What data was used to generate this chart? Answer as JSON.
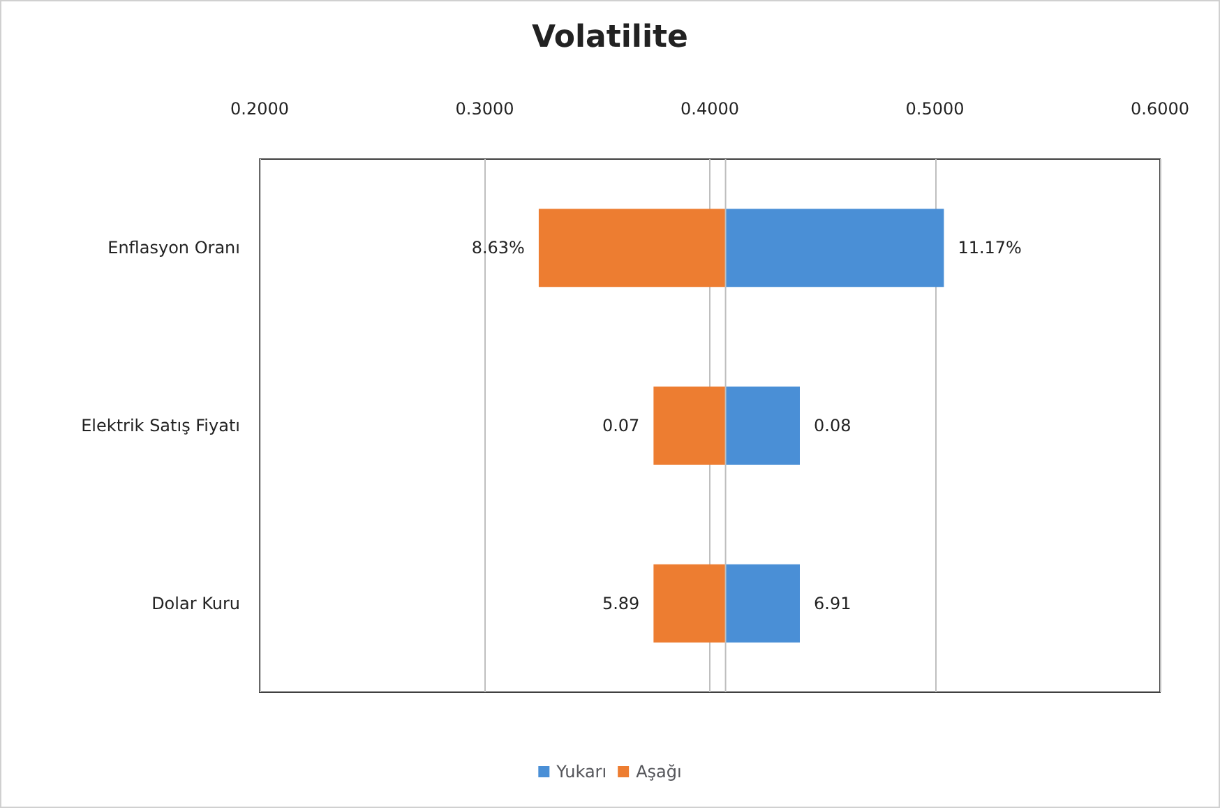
{
  "chart_data": {
    "type": "bar",
    "orientation": "horizontal",
    "title": "Volatilite",
    "categories": [
      "Enflasyon Oranı",
      "Elektrik Satış Fiyatı",
      "Dolar Kuru"
    ],
    "series": [
      {
        "name": "Yukarı",
        "color": "#4a8fd6",
        "base": [
          0.407,
          0.407,
          0.407
        ],
        "values": [
          0.097,
          0.033,
          0.033
        ]
      },
      {
        "name": "Aşağı",
        "color": "#ed7d31",
        "base": [
          0.324,
          0.375,
          0.375
        ],
        "values": [
          0.083,
          0.032,
          0.032
        ]
      }
    ],
    "annotations": [
      {
        "text": "11.17%",
        "x": 0.504,
        "y": "Enflasyon Oranı"
      },
      {
        "text": "8.63%",
        "x": 0.324,
        "y": "Enflasyon Oranı"
      },
      {
        "text": "0.08",
        "x": 0.44,
        "y": "Elektrik Satış Fiyatı"
      },
      {
        "text": "0.07",
        "x": 0.375,
        "y": "Elektrik Satış Fiyatı"
      },
      {
        "text": "6.91",
        "x": 0.44,
        "y": "Dolar Kuru"
      },
      {
        "text": "5.89",
        "x": 0.375,
        "y": "Dolar Kuru"
      }
    ],
    "xlim": [
      0.2,
      0.6
    ],
    "xticks": [
      {
        "value": 0.2,
        "label": "0.2000"
      },
      {
        "value": 0.3,
        "label": "0.3000"
      },
      {
        "value": 0.4,
        "label": "0.4000"
      },
      {
        "value": 0.5,
        "label": "0.5000"
      },
      {
        "value": 0.6,
        "label": "0.6000"
      }
    ],
    "ref_lines": [
      {
        "axis": "x",
        "value": 0.407,
        "color": "#bfbfbf"
      }
    ],
    "grid": "x",
    "legend": "bottom"
  }
}
